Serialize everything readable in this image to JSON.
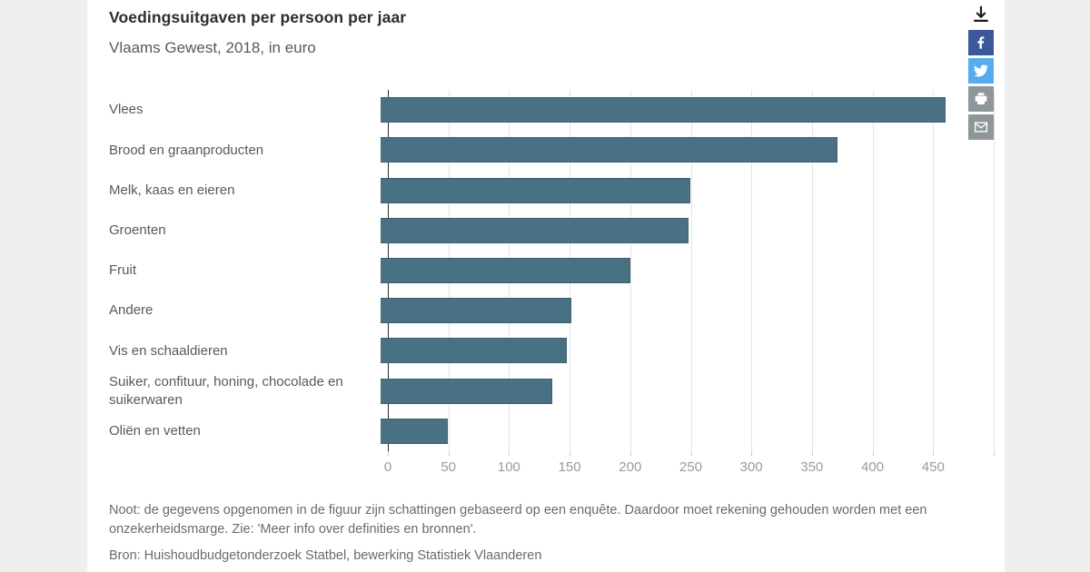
{
  "header": {
    "title": "Voedingsuitgaven per persoon per jaar",
    "subtitle": "Vlaams Gewest, 2018, in euro"
  },
  "share": {
    "download": {
      "icon": "download-icon",
      "color": "#1a1a1a"
    },
    "buttons": [
      {
        "id": "facebook",
        "icon": "facebook-icon",
        "color": "#3b5998"
      },
      {
        "id": "twitter",
        "icon": "twitter-icon",
        "color": "#55acee"
      },
      {
        "id": "print",
        "icon": "printer-icon",
        "color": "#8d979a"
      },
      {
        "id": "email",
        "icon": "envelope-icon",
        "color": "#8d979a"
      }
    ]
  },
  "chart_data": {
    "type": "bar",
    "orientation": "horizontal",
    "title": "Voedingsuitgaven per persoon per jaar",
    "subtitle": "Vlaams Gewest, 2018, in euro",
    "unit": "euro",
    "categories": [
      "Vlees",
      "Brood en graanproducten",
      "Melk, kaas en eieren",
      "Groenten",
      "Fruit",
      "Andere",
      "Vis en schaaldieren",
      "Suiker, confituur, honing, chocolade en suikerwaren",
      "Oliën en vetten"
    ],
    "values": [
      460,
      372,
      252,
      250,
      203,
      155,
      151,
      139,
      54
    ],
    "xlim": [
      0,
      500
    ],
    "x_ticks": [
      0,
      50,
      100,
      150,
      200,
      250,
      300,
      350,
      400,
      450
    ],
    "grid": true,
    "grid_interval": 50,
    "bar_color": "#4a7183",
    "bar_border_color": "#3d6070",
    "legend": "none"
  },
  "footer": {
    "note": "Noot: de gegevens opgenomen in de figuur zijn schattingen gebaseerd op een enquête. Daardoor moet rekening gehouden worden met een onzekerheidsmarge. Zie: 'Meer info over definities en bronnen'.",
    "source": "Bron: Huishoudbudgetonderzoek Statbel, bewerking Statistiek Vlaanderen"
  }
}
